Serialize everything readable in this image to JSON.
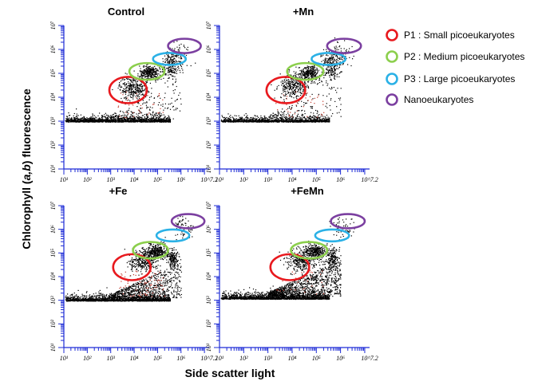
{
  "chart_data": {
    "type": "scatter",
    "xlabel": "Side scatter light",
    "ylabel_parts": [
      "Chlorophyll (",
      "a,b",
      ") fluorescence"
    ],
    "xaxis": {
      "scale": "log",
      "range": [
        10,
        15848932
      ],
      "ticks": [
        {
          "value": 10,
          "label": "10¹"
        },
        {
          "value": 100,
          "label": "10²"
        },
        {
          "value": 1000,
          "label": "10³"
        },
        {
          "value": 10000,
          "label": "10⁴"
        },
        {
          "value": 100000,
          "label": "10⁵"
        },
        {
          "value": 1000000,
          "label": "10⁶"
        },
        {
          "value": 15848932,
          "label": "10^7.2"
        }
      ]
    },
    "yaxis": {
      "scale": "log",
      "range": [
        10,
        10000000
      ],
      "ticks": [
        {
          "value": 10,
          "label": "10¹"
        },
        {
          "value": 100,
          "label": "10²"
        },
        {
          "value": 1000,
          "label": "10³"
        },
        {
          "value": 10000,
          "label": "10⁴"
        },
        {
          "value": 100000,
          "label": "10⁵"
        },
        {
          "value": 1000000,
          "label": "10⁶"
        },
        {
          "value": 10000000,
          "label": "10⁷"
        }
      ]
    },
    "legend": {
      "placement": "right",
      "entries": [
        {
          "label": "P1 : Small picoeukaryotes",
          "color": "#e8191e"
        },
        {
          "label": "P2 : Medium picoeukaryotes",
          "color": "#8ccf4d"
        },
        {
          "label": "P3 : Large picoeukaryotes",
          "color": "#2bb1e6"
        },
        {
          "label": "Nanoeukaryotes",
          "color": "#7b3fa0"
        }
      ]
    },
    "panels": [
      {
        "title": "Control",
        "gates": [
          {
            "group": 0,
            "x": 5500,
            "y": 20000,
            "rx": 0.8,
            "ry": 0.55
          },
          {
            "group": 1,
            "x": 35000,
            "y": 120000,
            "rx": 0.75,
            "ry": 0.35
          },
          {
            "group": 2,
            "x": 320000,
            "y": 400000,
            "rx": 0.7,
            "ry": 0.25
          },
          {
            "group": 3,
            "x": 1400000,
            "y": 1400000,
            "rx": 0.7,
            "ry": 0.3
          }
        ],
        "clusters": [
          {
            "x": 9000,
            "y": 25000,
            "sx": 0.3,
            "sy": 0.25,
            "n": 320
          },
          {
            "x": 45000,
            "y": 110000,
            "sx": 0.22,
            "sy": 0.15,
            "n": 300
          },
          {
            "x": 350000,
            "y": 220000,
            "sx": 0.2,
            "sy": 0.35,
            "n": 220
          },
          {
            "x": 900000,
            "y": 600000,
            "sx": 0.25,
            "sy": 0.25,
            "n": 60
          }
        ],
        "baseline": {
          "y": 1000,
          "n": 1500,
          "spread": 0.14
        },
        "cloud": {
          "n": 120
        },
        "red_points": 40
      },
      {
        "title": "+Mn",
        "gates": [
          {
            "group": 0,
            "x": 5500,
            "y": 20000,
            "rx": 0.8,
            "ry": 0.55
          },
          {
            "group": 1,
            "x": 35000,
            "y": 120000,
            "rx": 0.75,
            "ry": 0.35
          },
          {
            "group": 2,
            "x": 320000,
            "y": 400000,
            "rx": 0.7,
            "ry": 0.25
          },
          {
            "group": 3,
            "x": 1400000,
            "y": 1400000,
            "rx": 0.7,
            "ry": 0.3
          }
        ],
        "clusters": [
          {
            "x": 11000,
            "y": 30000,
            "sx": 0.3,
            "sy": 0.25,
            "n": 320
          },
          {
            "x": 50000,
            "y": 110000,
            "sx": 0.22,
            "sy": 0.15,
            "n": 300
          },
          {
            "x": 400000,
            "y": 220000,
            "sx": 0.2,
            "sy": 0.35,
            "n": 240
          },
          {
            "x": 900000,
            "y": 600000,
            "sx": 0.25,
            "sy": 0.25,
            "n": 60
          }
        ],
        "baseline": {
          "y": 1000,
          "n": 1300,
          "spread": 0.12
        },
        "cloud": {
          "n": 120
        },
        "red_points": 40
      },
      {
        "title": "+Fe",
        "gates": [
          {
            "group": 0,
            "x": 8000,
            "y": 25000,
            "rx": 0.8,
            "ry": 0.55
          },
          {
            "group": 1,
            "x": 50000,
            "y": 130000,
            "rx": 0.75,
            "ry": 0.35
          },
          {
            "group": 2,
            "x": 450000,
            "y": 550000,
            "rx": 0.7,
            "ry": 0.25
          },
          {
            "group": 3,
            "x": 2000000,
            "y": 2200000,
            "rx": 0.7,
            "ry": 0.3
          }
        ],
        "clusters": [
          {
            "x": 25000,
            "y": 50000,
            "sx": 0.3,
            "sy": 0.25,
            "n": 340
          },
          {
            "x": 90000,
            "y": 120000,
            "sx": 0.22,
            "sy": 0.15,
            "n": 320
          },
          {
            "x": 450000,
            "y": 60000,
            "sx": 0.12,
            "sy": 0.2,
            "n": 180
          },
          {
            "x": 1200000,
            "y": 1200000,
            "sx": 0.25,
            "sy": 0.25,
            "n": 70
          }
        ],
        "baseline": {
          "y": 1000,
          "n": 1500,
          "spread": 0.15
        },
        "cloud": {
          "n": 700
        },
        "red_points": 80
      },
      {
        "title": "+FeMn",
        "gates": [
          {
            "group": 0,
            "x": 8000,
            "y": 25000,
            "rx": 0.8,
            "ry": 0.55
          },
          {
            "group": 1,
            "x": 50000,
            "y": 130000,
            "rx": 0.75,
            "ry": 0.35
          },
          {
            "group": 2,
            "x": 450000,
            "y": 550000,
            "rx": 0.7,
            "ry": 0.25
          },
          {
            "group": 3,
            "x": 2000000,
            "y": 2200000,
            "rx": 0.7,
            "ry": 0.3
          }
        ],
        "clusters": [
          {
            "x": 25000,
            "y": 50000,
            "sx": 0.3,
            "sy": 0.25,
            "n": 340
          },
          {
            "x": 90000,
            "y": 120000,
            "sx": 0.22,
            "sy": 0.15,
            "n": 320
          },
          {
            "x": 450000,
            "y": 60000,
            "sx": 0.12,
            "sy": 0.2,
            "n": 180
          },
          {
            "x": 1200000,
            "y": 1200000,
            "sx": 0.25,
            "sy": 0.25,
            "n": 70
          }
        ],
        "baseline": {
          "y": 1200,
          "n": 1600,
          "spread": 0.17
        },
        "cloud": {
          "n": 900
        },
        "red_points": 30
      }
    ]
  }
}
